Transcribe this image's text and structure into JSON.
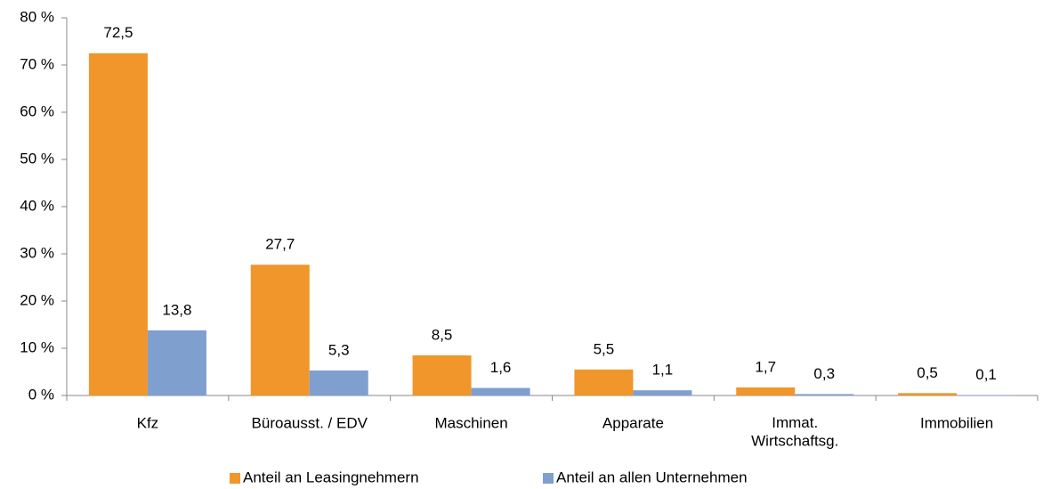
{
  "chart_data": {
    "type": "bar",
    "categories": [
      "Kfz",
      "Büroausst. / EDV",
      "Maschinen",
      "Apparate",
      "Immat.\nWirtschaftsg.",
      "Immobilien"
    ],
    "series": [
      {
        "name": "Anteil an Leasingnehmern",
        "color": "#f0962a",
        "values": [
          72.5,
          27.7,
          8.5,
          5.5,
          1.7,
          0.5
        ],
        "value_labels": [
          "72,5",
          "27,7",
          "8,5",
          "5,5",
          "1,7",
          "0,5"
        ]
      },
      {
        "name": "Anteil an allen Unternehmen",
        "color": "#7f9fcf",
        "values": [
          13.8,
          5.3,
          1.6,
          1.1,
          0.3,
          0.1
        ],
        "value_labels": [
          "13,8",
          "5,3",
          "1,6",
          "1,1",
          "0,3",
          "0,1"
        ]
      }
    ],
    "ylim": [
      0,
      80
    ],
    "yticks": [
      {
        "value": 0,
        "label": "0 %"
      },
      {
        "value": 10,
        "label": "10 %"
      },
      {
        "value": 20,
        "label": "20 %"
      },
      {
        "value": 30,
        "label": "30 %"
      },
      {
        "value": 40,
        "label": "40 %"
      },
      {
        "value": 50,
        "label": "50 %"
      },
      {
        "value": 60,
        "label": "60 %"
      },
      {
        "value": 70,
        "label": "70 %"
      },
      {
        "value": 80,
        "label": "80 %"
      }
    ],
    "grid": false,
    "legend": "bottom"
  }
}
